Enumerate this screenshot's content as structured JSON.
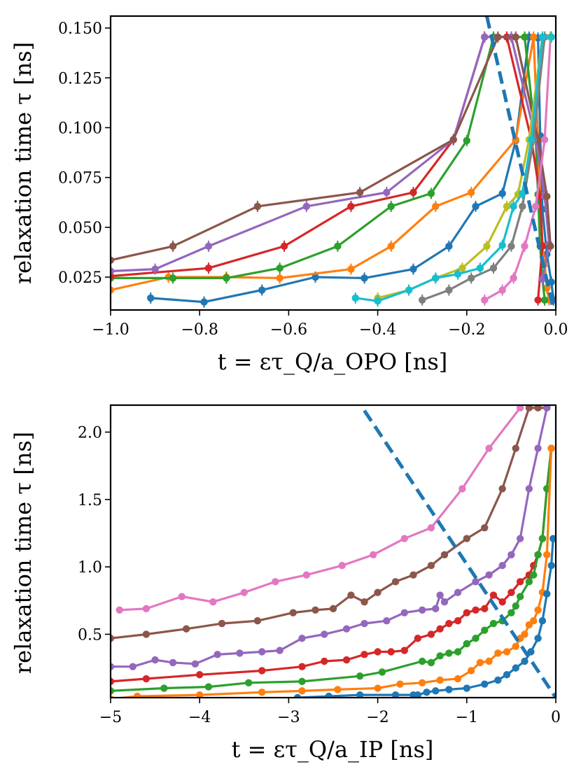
{
  "chart_data": [
    {
      "type": "line",
      "title": "",
      "xlabel": "t = ετ_Q/a_OPO [ns]",
      "ylabel": "relaxation time τ [ns]",
      "xlim": [
        -1.0,
        0.0
      ],
      "ylim": [
        0.0085,
        0.156
      ],
      "xticks": [
        "−1.0",
        "−0.8",
        "−0.6",
        "−0.4",
        "−0.2",
        "0.0"
      ],
      "xtick_values": [
        -1.0,
        -0.8,
        -0.6,
        -0.4,
        -0.2,
        0.0
      ],
      "yticks": [
        "0.025",
        "0.050",
        "0.075",
        "0.100",
        "0.125",
        "0.150"
      ],
      "ytick_values": [
        0.025,
        0.05,
        0.075,
        0.1,
        0.125,
        0.15
      ],
      "dashed_line": {
        "x": [
          -0.155,
          -0.005
        ],
        "y": [
          0.156,
          0.0085
        ],
        "color": "#1f77b4"
      },
      "series": [
        {
          "name": "blue",
          "color": "#1f77b4",
          "x": [
            -0.91,
            -0.79,
            -0.66,
            -0.54,
            -0.43,
            -0.32,
            -0.24,
            -0.18,
            -0.12,
            -0.09,
            -0.06,
            -0.04,
            -0.035,
            -0.03,
            -0.02,
            -0.01,
            -0.005
          ],
          "y": [
            0.0145,
            0.0125,
            0.0185,
            0.025,
            0.0245,
            0.029,
            0.0405,
            0.0605,
            0.067,
            0.0935,
            0.1455,
            0.145,
            0.096,
            0.059,
            0.0365,
            0.0225,
            0.0135
          ]
        },
        {
          "name": "orange",
          "color": "#ff7f0e",
          "x": [
            -1.0,
            -0.87,
            -0.74,
            -0.62,
            -0.46,
            -0.37,
            -0.27,
            -0.19,
            -0.09,
            -0.05,
            -0.04,
            -0.035,
            -0.03,
            -0.025,
            -0.02,
            -0.015
          ],
          "y": [
            0.0185,
            0.025,
            0.025,
            0.0245,
            0.029,
            0.0405,
            0.0605,
            0.0675,
            0.094,
            0.1455,
            0.094,
            0.066,
            0.041,
            0.0315,
            0.0195,
            0.0135
          ]
        },
        {
          "name": "green",
          "color": "#2ca02c",
          "x": [
            -1.0,
            -0.86,
            -0.74,
            -0.62,
            -0.49,
            -0.37,
            -0.28,
            -0.2,
            -0.14,
            -0.07,
            -0.045,
            -0.04,
            -0.035,
            -0.03,
            -0.025
          ],
          "y": [
            0.0245,
            0.0245,
            0.0245,
            0.0295,
            0.0405,
            0.0605,
            0.067,
            0.0935,
            0.1455,
            0.1455,
            0.094,
            0.0665,
            0.0405,
            0.0245,
            0.0135
          ]
        },
        {
          "name": "red",
          "color": "#d62728",
          "x": [
            -1.0,
            -0.78,
            -0.61,
            -0.46,
            -0.32,
            -0.23,
            -0.16,
            -0.11,
            -0.055,
            -0.035,
            -0.03,
            -0.04
          ],
          "y": [
            0.0255,
            0.0295,
            0.0405,
            0.0605,
            0.0675,
            0.094,
            0.1455,
            0.1455,
            0.094,
            0.0655,
            0.0405,
            0.0135
          ]
        },
        {
          "name": "purple",
          "color": "#9467bd",
          "x": [
            -1.0,
            -0.9,
            -0.78,
            -0.56,
            -0.38,
            -0.23,
            -0.16,
            -0.1,
            -0.045,
            -0.025,
            -0.015,
            -0.03
          ],
          "y": [
            0.028,
            0.029,
            0.0405,
            0.0605,
            0.0675,
            0.094,
            0.1455,
            0.1455,
            0.094,
            0.0655,
            0.0415,
            0.024
          ]
        },
        {
          "name": "brown",
          "color": "#8c564b",
          "x": [
            -1.0,
            -0.86,
            -0.67,
            -0.44,
            -0.23,
            -0.13,
            -0.09,
            -0.04,
            -0.02,
            -0.012
          ],
          "y": [
            0.0335,
            0.0405,
            0.0605,
            0.0675,
            0.094,
            0.1455,
            0.1455,
            0.094,
            0.0655,
            0.0405
          ]
        },
        {
          "name": "pink",
          "color": "#e377c2",
          "x": [
            -0.16,
            -0.12,
            -0.095,
            -0.07,
            -0.045,
            -0.025,
            -0.012
          ],
          "y": [
            0.0135,
            0.0185,
            0.0245,
            0.0405,
            0.0605,
            0.094,
            0.1455
          ]
        },
        {
          "name": "gray",
          "color": "#7f7f7f",
          "x": [
            -0.3,
            -0.24,
            -0.19,
            -0.14,
            -0.1,
            -0.075,
            -0.05,
            -0.025,
            -0.01
          ],
          "y": [
            0.0135,
            0.0185,
            0.0245,
            0.0295,
            0.0405,
            0.0605,
            0.094,
            0.1455,
            0.1455
          ]
        },
        {
          "name": "olive",
          "color": "#bcbd22",
          "x": [
            -0.4,
            -0.33,
            -0.27,
            -0.21,
            -0.155,
            -0.11,
            -0.085,
            -0.06,
            -0.03,
            -0.012
          ],
          "y": [
            0.0145,
            0.0185,
            0.0245,
            0.0295,
            0.0405,
            0.0605,
            0.0665,
            0.094,
            0.1455,
            0.1455
          ]
        },
        {
          "name": "cyan",
          "color": "#17becf",
          "x": [
            -0.45,
            -0.4,
            -0.33,
            -0.27,
            -0.22,
            -0.17,
            -0.12,
            -0.095,
            -0.075,
            -0.055,
            -0.03,
            -0.01
          ],
          "y": [
            0.0145,
            0.013,
            0.0185,
            0.0245,
            0.0265,
            0.0295,
            0.041,
            0.0605,
            0.067,
            0.094,
            0.1455,
            0.1455
          ]
        }
      ]
    },
    {
      "type": "line",
      "title": "",
      "xlabel": "t = ετ_Q/a_IP [ns]",
      "ylabel": "relaxation time τ [ns]",
      "xlim": [
        -5,
        0
      ],
      "ylim": [
        0.03,
        2.2
      ],
      "xticks": [
        "−5",
        "−4",
        "−3",
        "−2",
        "−1",
        "0"
      ],
      "xtick_values": [
        -5,
        -4,
        -3,
        -2,
        -1,
        0
      ],
      "yticks": [
        "0.5",
        "1.0",
        "1.5",
        "2.0"
      ],
      "ytick_values": [
        0.5,
        1.0,
        1.5,
        2.0
      ],
      "dashed_line": {
        "x": [
          -2.15,
          0.0
        ],
        "y": [
          2.16,
          0.03
        ],
        "color": "#1f77b4"
      },
      "series": [
        {
          "name": "pink",
          "color": "#e377c2",
          "x": [
            -4.9,
            -4.6,
            -4.2,
            -3.85,
            -3.5,
            -3.15,
            -2.8,
            -2.4,
            -2.05,
            -1.7,
            -1.4,
            -1.05,
            -0.75,
            -0.4
          ],
          "y": [
            0.68,
            0.69,
            0.78,
            0.74,
            0.81,
            0.89,
            0.94,
            1.01,
            1.09,
            1.21,
            1.29,
            1.58,
            1.88,
            2.18
          ]
        },
        {
          "name": "brown",
          "color": "#8c564b",
          "x": [
            -5.0,
            -4.6,
            -4.15,
            -3.75,
            -3.35,
            -2.95,
            -2.7,
            -2.5,
            -2.3,
            -2.15,
            -2.0,
            -1.8,
            -1.6,
            -1.4,
            -1.25,
            -1.0,
            -0.8,
            -0.6,
            -0.45,
            -0.3,
            -0.2,
            -0.1
          ],
          "y": [
            0.47,
            0.5,
            0.54,
            0.58,
            0.6,
            0.66,
            0.68,
            0.69,
            0.79,
            0.74,
            0.81,
            0.89,
            0.94,
            1.01,
            1.09,
            1.21,
            1.29,
            1.58,
            1.88,
            2.18,
            2.18,
            2.18
          ]
        },
        {
          "name": "purple",
          "color": "#9467bd",
          "x": [
            -5.0,
            -4.75,
            -4.5,
            -4.3,
            -4.05,
            -3.8,
            -3.55,
            -3.3,
            -3.1,
            -2.85,
            -2.6,
            -2.35,
            -2.15,
            -1.9,
            -1.7,
            -1.5,
            -1.35,
            -1.3,
            -1.25,
            -1.1,
            -0.9,
            -0.75,
            -0.6,
            -0.5,
            -0.4,
            -0.3,
            -0.2,
            -0.1
          ],
          "y": [
            0.26,
            0.26,
            0.31,
            0.29,
            0.28,
            0.35,
            0.36,
            0.37,
            0.38,
            0.47,
            0.5,
            0.54,
            0.58,
            0.6,
            0.66,
            0.68,
            0.69,
            0.79,
            0.74,
            0.81,
            0.89,
            0.94,
            1.01,
            1.09,
            1.21,
            1.58,
            1.88,
            2.18
          ]
        },
        {
          "name": "red",
          "color": "#d62728",
          "x": [
            -5.0,
            -4.6,
            -4.0,
            -3.3,
            -2.85,
            -2.6,
            -2.35,
            -2.15,
            -2.0,
            -1.85,
            -1.7,
            -1.55,
            -1.4,
            -1.3,
            -1.2,
            -1.1,
            -1.0,
            -0.9,
            -0.8,
            -0.7,
            -0.6,
            -0.5,
            -0.4,
            -0.3,
            -0.25,
            -0.2,
            -0.15,
            -0.1,
            -0.05
          ],
          "y": [
            0.15,
            0.17,
            0.2,
            0.23,
            0.26,
            0.3,
            0.31,
            0.35,
            0.37,
            0.37,
            0.38,
            0.47,
            0.5,
            0.54,
            0.58,
            0.6,
            0.66,
            0.68,
            0.69,
            0.79,
            0.74,
            0.81,
            0.89,
            0.94,
            1.01,
            1.09,
            1.21,
            1.58,
            1.88
          ]
        },
        {
          "name": "green",
          "color": "#2ca02c",
          "x": [
            -5.0,
            -4.4,
            -3.9,
            -3.45,
            -2.85,
            -2.2,
            -1.95,
            -1.5,
            -1.4,
            -1.3,
            -1.2,
            -1.1,
            -1.0,
            -0.9,
            -0.8,
            -0.7,
            -0.6,
            -0.5,
            -0.45,
            -0.4,
            -0.3,
            -0.25,
            -0.2,
            -0.15,
            -0.1,
            -0.05
          ],
          "y": [
            0.08,
            0.1,
            0.11,
            0.14,
            0.15,
            0.19,
            0.22,
            0.3,
            0.29,
            0.34,
            0.36,
            0.37,
            0.43,
            0.47,
            0.53,
            0.58,
            0.6,
            0.66,
            0.71,
            0.78,
            0.89,
            0.94,
            1.09,
            1.21,
            1.58,
            1.88
          ]
        },
        {
          "name": "orange",
          "color": "#ff7f0e",
          "x": [
            -5.0,
            -4.7,
            -4.0,
            -3.3,
            -2.85,
            -2.45,
            -2.0,
            -1.75,
            -1.5,
            -1.3,
            -1.1,
            -0.95,
            -0.85,
            -0.75,
            -0.65,
            -0.55,
            -0.45,
            -0.4,
            -0.35,
            -0.3,
            -0.25,
            -0.2,
            -0.15,
            -0.1,
            -0.05
          ],
          "y": [
            0.02,
            0.04,
            0.05,
            0.07,
            0.08,
            0.09,
            0.1,
            0.13,
            0.14,
            0.16,
            0.17,
            0.23,
            0.29,
            0.3,
            0.36,
            0.37,
            0.41,
            0.47,
            0.5,
            0.57,
            0.6,
            0.68,
            0.81,
            1.09,
            1.88
          ]
        },
        {
          "name": "blue",
          "color": "#1f77b4",
          "x": [
            -2.9,
            -2.55,
            -2.2,
            -1.8,
            -1.6,
            -1.55,
            -1.45,
            -1.35,
            -1.2,
            -1.0,
            -0.8,
            -0.65,
            -0.55,
            -0.45,
            -0.35,
            -0.28,
            -0.2,
            -0.15,
            -0.1,
            -0.05,
            -0.03
          ],
          "y": [
            0.03,
            0.04,
            0.05,
            0.05,
            0.05,
            0.05,
            0.07,
            0.08,
            0.09,
            0.1,
            0.13,
            0.16,
            0.2,
            0.25,
            0.3,
            0.37,
            0.47,
            0.6,
            0.8,
            1.01,
            1.21
          ]
        }
      ]
    }
  ]
}
